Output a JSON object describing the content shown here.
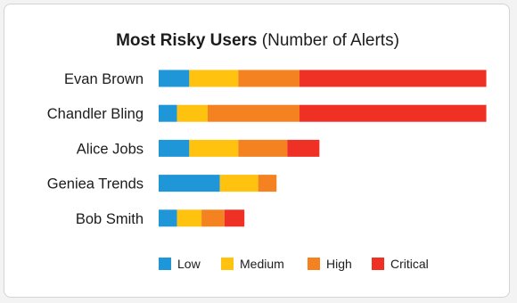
{
  "chart_data": {
    "type": "bar",
    "orientation": "horizontal",
    "stacked": true,
    "title": "Most Risky Users",
    "subtitle": "(Number of Alerts)",
    "categories": [
      "Evan Brown",
      "Chandler Bling",
      "Alice Jobs",
      "Geniea Trends",
      "Bob Smith"
    ],
    "series": [
      {
        "name": "Low",
        "color": "#1e96d8",
        "values": [
          2,
          1.2,
          2,
          4,
          1.2
        ]
      },
      {
        "name": "Medium",
        "color": "#ffc20e",
        "values": [
          3.2,
          2,
          3.2,
          2.5,
          1.6
        ]
      },
      {
        "name": "High",
        "color": "#f58220",
        "values": [
          4,
          6,
          3.2,
          1.2,
          1.5
        ]
      },
      {
        "name": "Critical",
        "color": "#ee3124",
        "values": [
          12.2,
          12.2,
          2.1,
          0,
          1.3
        ]
      }
    ],
    "xlim": [
      0,
      21.6
    ],
    "axis_ticks_shown": false,
    "grid": false,
    "legend": {
      "position": "bottom-center"
    }
  }
}
